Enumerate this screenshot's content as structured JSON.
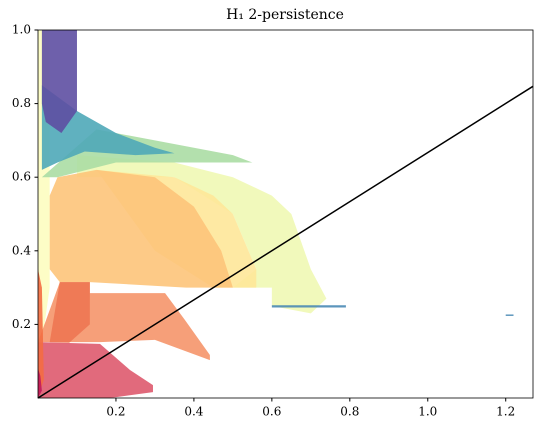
{
  "chart_data": {
    "type": "region",
    "title": "H₁ 2-persistence",
    "xlim": [
      0,
      1.27
    ],
    "ylim": [
      0,
      1
    ],
    "xticks": [
      0.2,
      0.4,
      0.6,
      0.8,
      {
        "value": 1,
        "label": "1.0"
      },
      1.2
    ],
    "yticks": [
      0.2,
      0.4,
      0.6,
      0.8,
      {
        "value": 1,
        "label": "1.0"
      }
    ],
    "regions": [
      {
        "color": "#fdfdc0",
        "x": [
          0,
          0,
          0.03,
          0.03,
          0.01
        ],
        "y": [
          0.15,
          1,
          1,
          0.3,
          0.15
        ]
      },
      {
        "color": "#f0f8b4",
        "x": [
          0.1,
          0.35,
          0.5,
          0.6,
          0.65,
          0.7,
          0.74,
          0.7,
          0.6,
          0.6,
          0.5,
          0.56,
          0.5,
          0.35,
          0.1
        ],
        "y": [
          0.66,
          0.64,
          0.6,
          0.55,
          0.5,
          0.35,
          0.27,
          0.23,
          0.25,
          0.3,
          0.3,
          0.35,
          0.5,
          0.6,
          0.6
        ]
      },
      {
        "color": "#abdda4",
        "x": [
          0.01,
          0.15,
          0.3,
          0.5,
          0.55,
          0.4,
          0.2,
          0.05
        ],
        "y": [
          0.6,
          0.73,
          0.7,
          0.66,
          0.64,
          0.64,
          0.64,
          0.6
        ]
      },
      {
        "color": "#fee799",
        "x": [
          0.15,
          0.35,
          0.45,
          0.5,
          0.56,
          0.56,
          0.45,
          0.3
        ],
        "y": [
          0.62,
          0.6,
          0.55,
          0.5,
          0.35,
          0.3,
          0.3,
          0.4
        ]
      },
      {
        "color": "#fdc47a",
        "x": [
          0.05,
          0.15,
          0.3,
          0.4,
          0.47,
          0.5,
          0.38,
          0.133,
          0.056,
          0.03,
          0.03
        ],
        "y": [
          0.6,
          0.62,
          0.6,
          0.52,
          0.4,
          0.3,
          0.3,
          0.315,
          0.315,
          0.35,
          0.55
        ]
      },
      {
        "color": "#f5956a",
        "x": [
          0,
          0.056,
          0.133,
          0.133,
          0.326,
          0.377,
          0.441,
          0.441,
          0.3,
          0.159
        ],
        "y": [
          0.152,
          0.315,
          0.315,
          0.285,
          0.285,
          0.212,
          0.117,
          0.103,
          0.158,
          0.152
        ]
      },
      {
        "color": "#ee7552",
        "x": [
          0.056,
          0.133,
          0.133,
          0.08,
          0.03
        ],
        "y": [
          0.315,
          0.315,
          0.2,
          0.15,
          0.152
        ]
      },
      {
        "color": "#de5a6e",
        "x": [
          0,
          0,
          0.159,
          0.236,
          0.295,
          0.295,
          0.185
        ],
        "y": [
          0,
          0.152,
          0.147,
          0.076,
          0.035,
          0.016,
          0
        ]
      },
      {
        "color": "#f46d43",
        "x": [
          0,
          0,
          0.01,
          0.015
        ],
        "y": [
          0,
          0.35,
          0.3,
          0.05
        ]
      },
      {
        "color": "#c2185b",
        "x": [
          0,
          0,
          0.006,
          0.01
        ],
        "y": [
          0,
          0.08,
          0.06,
          0.02
        ]
      },
      {
        "color": "#4fa8b8",
        "x": [
          0.01,
          0.01,
          0.1,
          0.2,
          0.3,
          0.35,
          0.25,
          0.12,
          0.05
        ],
        "y": [
          0.62,
          0.85,
          0.78,
          0.72,
          0.68,
          0.665,
          0.66,
          0.67,
          0.64
        ]
      },
      {
        "color": "#5e4fa2",
        "x": [
          0.01,
          0.1,
          0.1,
          0.06,
          0.02,
          0.01
        ],
        "y": [
          1,
          1,
          0.78,
          0.72,
          0.75,
          0.8
        ]
      },
      {
        "color": "#4a8ab5",
        "x": [
          0.6,
          0.79,
          0.79,
          0.6
        ],
        "y": [
          0.252,
          0.252,
          0.246,
          0.246
        ]
      },
      {
        "color": "#4a8ab5",
        "x": [
          1.2,
          1.22,
          1.22,
          1.2
        ],
        "y": [
          0.227,
          0.227,
          0.223,
          0.223
        ]
      }
    ],
    "line": {
      "color": "#000000",
      "x": [
        0,
        1.27
      ],
      "values": [
        0,
        0.847
      ]
    }
  }
}
